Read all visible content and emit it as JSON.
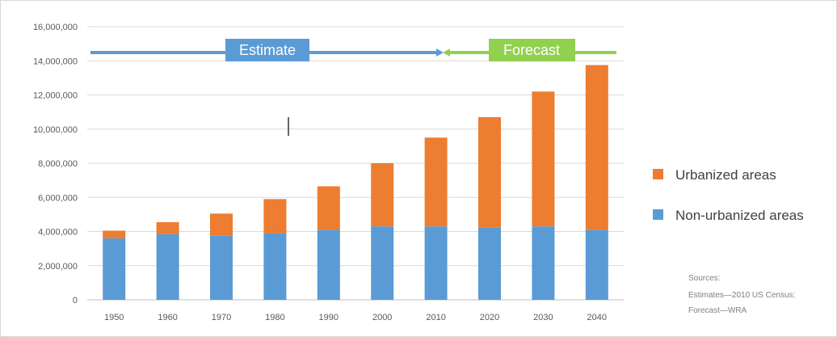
{
  "chart_data": {
    "type": "bar",
    "stacked": true,
    "categories": [
      "1950",
      "1960",
      "1970",
      "1980",
      "1990",
      "2000",
      "2010",
      "2020",
      "2030",
      "2040"
    ],
    "series": [
      {
        "name": "Non-urbanized areas",
        "color": "#5b9bd5",
        "values": [
          3600000,
          3850000,
          3750000,
          3900000,
          4100000,
          4300000,
          4300000,
          4250000,
          4300000,
          4100000
        ]
      },
      {
        "name": "Urbanized areas",
        "color": "#ed7d31",
        "values": [
          450000,
          700000,
          1300000,
          2000000,
          2550000,
          3700000,
          5200000,
          6450000,
          7900000,
          9650000
        ]
      }
    ],
    "ylim": [
      0,
      16000000
    ],
    "yticks": [
      "0",
      "2,000,000",
      "4,000,000",
      "6,000,000",
      "8,000,000",
      "10,000,000",
      "12,000,000",
      "14,000,000",
      "16,000,000"
    ],
    "grid": true,
    "legend": "right",
    "annotations": {
      "estimate_label": "Estimate",
      "forecast_label": "Forecast",
      "estimate_color": "#5b9bd5",
      "forecast_color": "#92d050"
    },
    "sources": {
      "heading": "Sources:",
      "line1": "Estimates—2010 US Census;",
      "line2": "Forecast—WRA"
    }
  }
}
